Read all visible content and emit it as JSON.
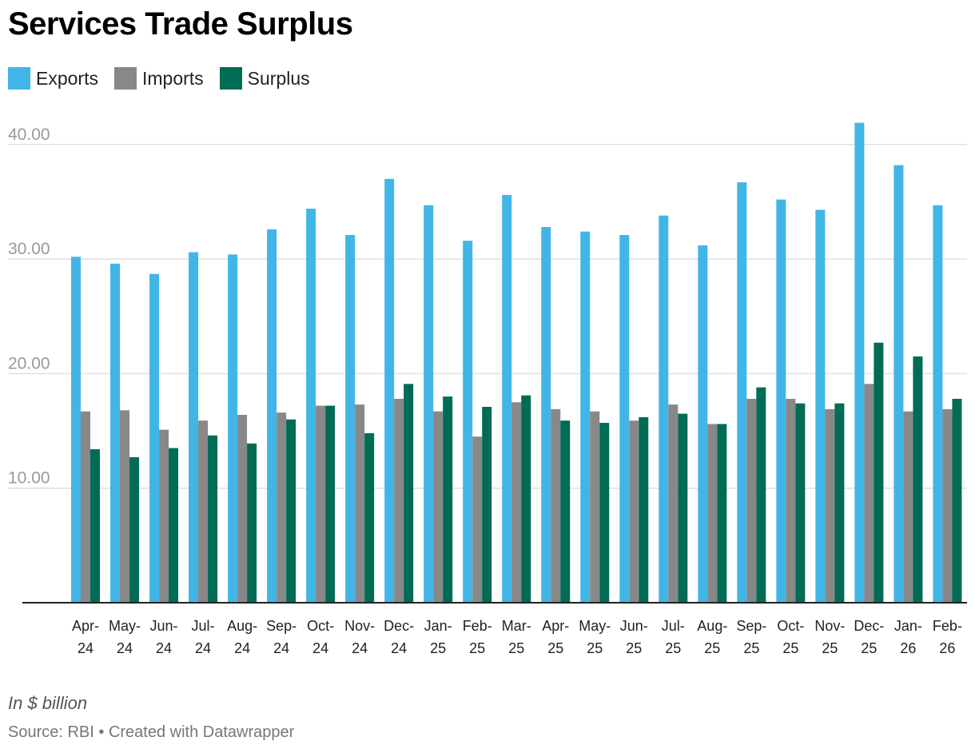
{
  "chart_data": {
    "type": "bar",
    "title": "Services Trade Surplus",
    "note": "In $ billion",
    "source": "Source: RBI • Created with Datawrapper",
    "categories": [
      "Apr-24",
      "May-24",
      "Jun-24",
      "Jul-24",
      "Aug-24",
      "Sep-24",
      "Oct-24",
      "Nov-24",
      "Dec-24",
      "Jan-25",
      "Feb-25",
      "Mar-25",
      "Apr-25",
      "May-25",
      "Jun-25",
      "Jul-25",
      "Aug-25",
      "Sep-25",
      "Oct-25",
      "Nov-25",
      "Dec-25",
      "Jan-26",
      "Feb-26"
    ],
    "series": [
      {
        "name": "Exports",
        "color": "#41b6e6",
        "values": [
          30.2,
          29.6,
          28.7,
          30.6,
          30.4,
          32.6,
          34.4,
          32.1,
          37.0,
          34.7,
          31.6,
          35.6,
          32.8,
          32.4,
          32.1,
          33.8,
          31.2,
          36.7,
          35.2,
          34.3,
          41.9,
          38.2,
          34.7
        ]
      },
      {
        "name": "Imports",
        "color": "#888888",
        "values": [
          16.7,
          16.8,
          15.1,
          15.9,
          16.4,
          16.6,
          17.2,
          17.3,
          17.8,
          16.7,
          14.5,
          17.5,
          16.9,
          16.7,
          15.9,
          17.3,
          15.6,
          17.8,
          17.8,
          16.9,
          19.1,
          16.7,
          16.9
        ]
      },
      {
        "name": "Surplus",
        "color": "#006c55",
        "values": [
          13.4,
          12.7,
          13.5,
          14.6,
          13.9,
          16.0,
          17.2,
          14.8,
          19.1,
          18.0,
          17.1,
          18.1,
          15.9,
          15.7,
          16.2,
          16.5,
          15.6,
          18.8,
          17.4,
          17.4,
          22.7,
          21.5,
          17.8
        ]
      }
    ],
    "y_ticks": [
      10,
      20,
      30,
      40
    ],
    "ylim": [
      0,
      42.5
    ],
    "grid": true,
    "legend": "top-left",
    "xlabel": "",
    "ylabel": ""
  }
}
